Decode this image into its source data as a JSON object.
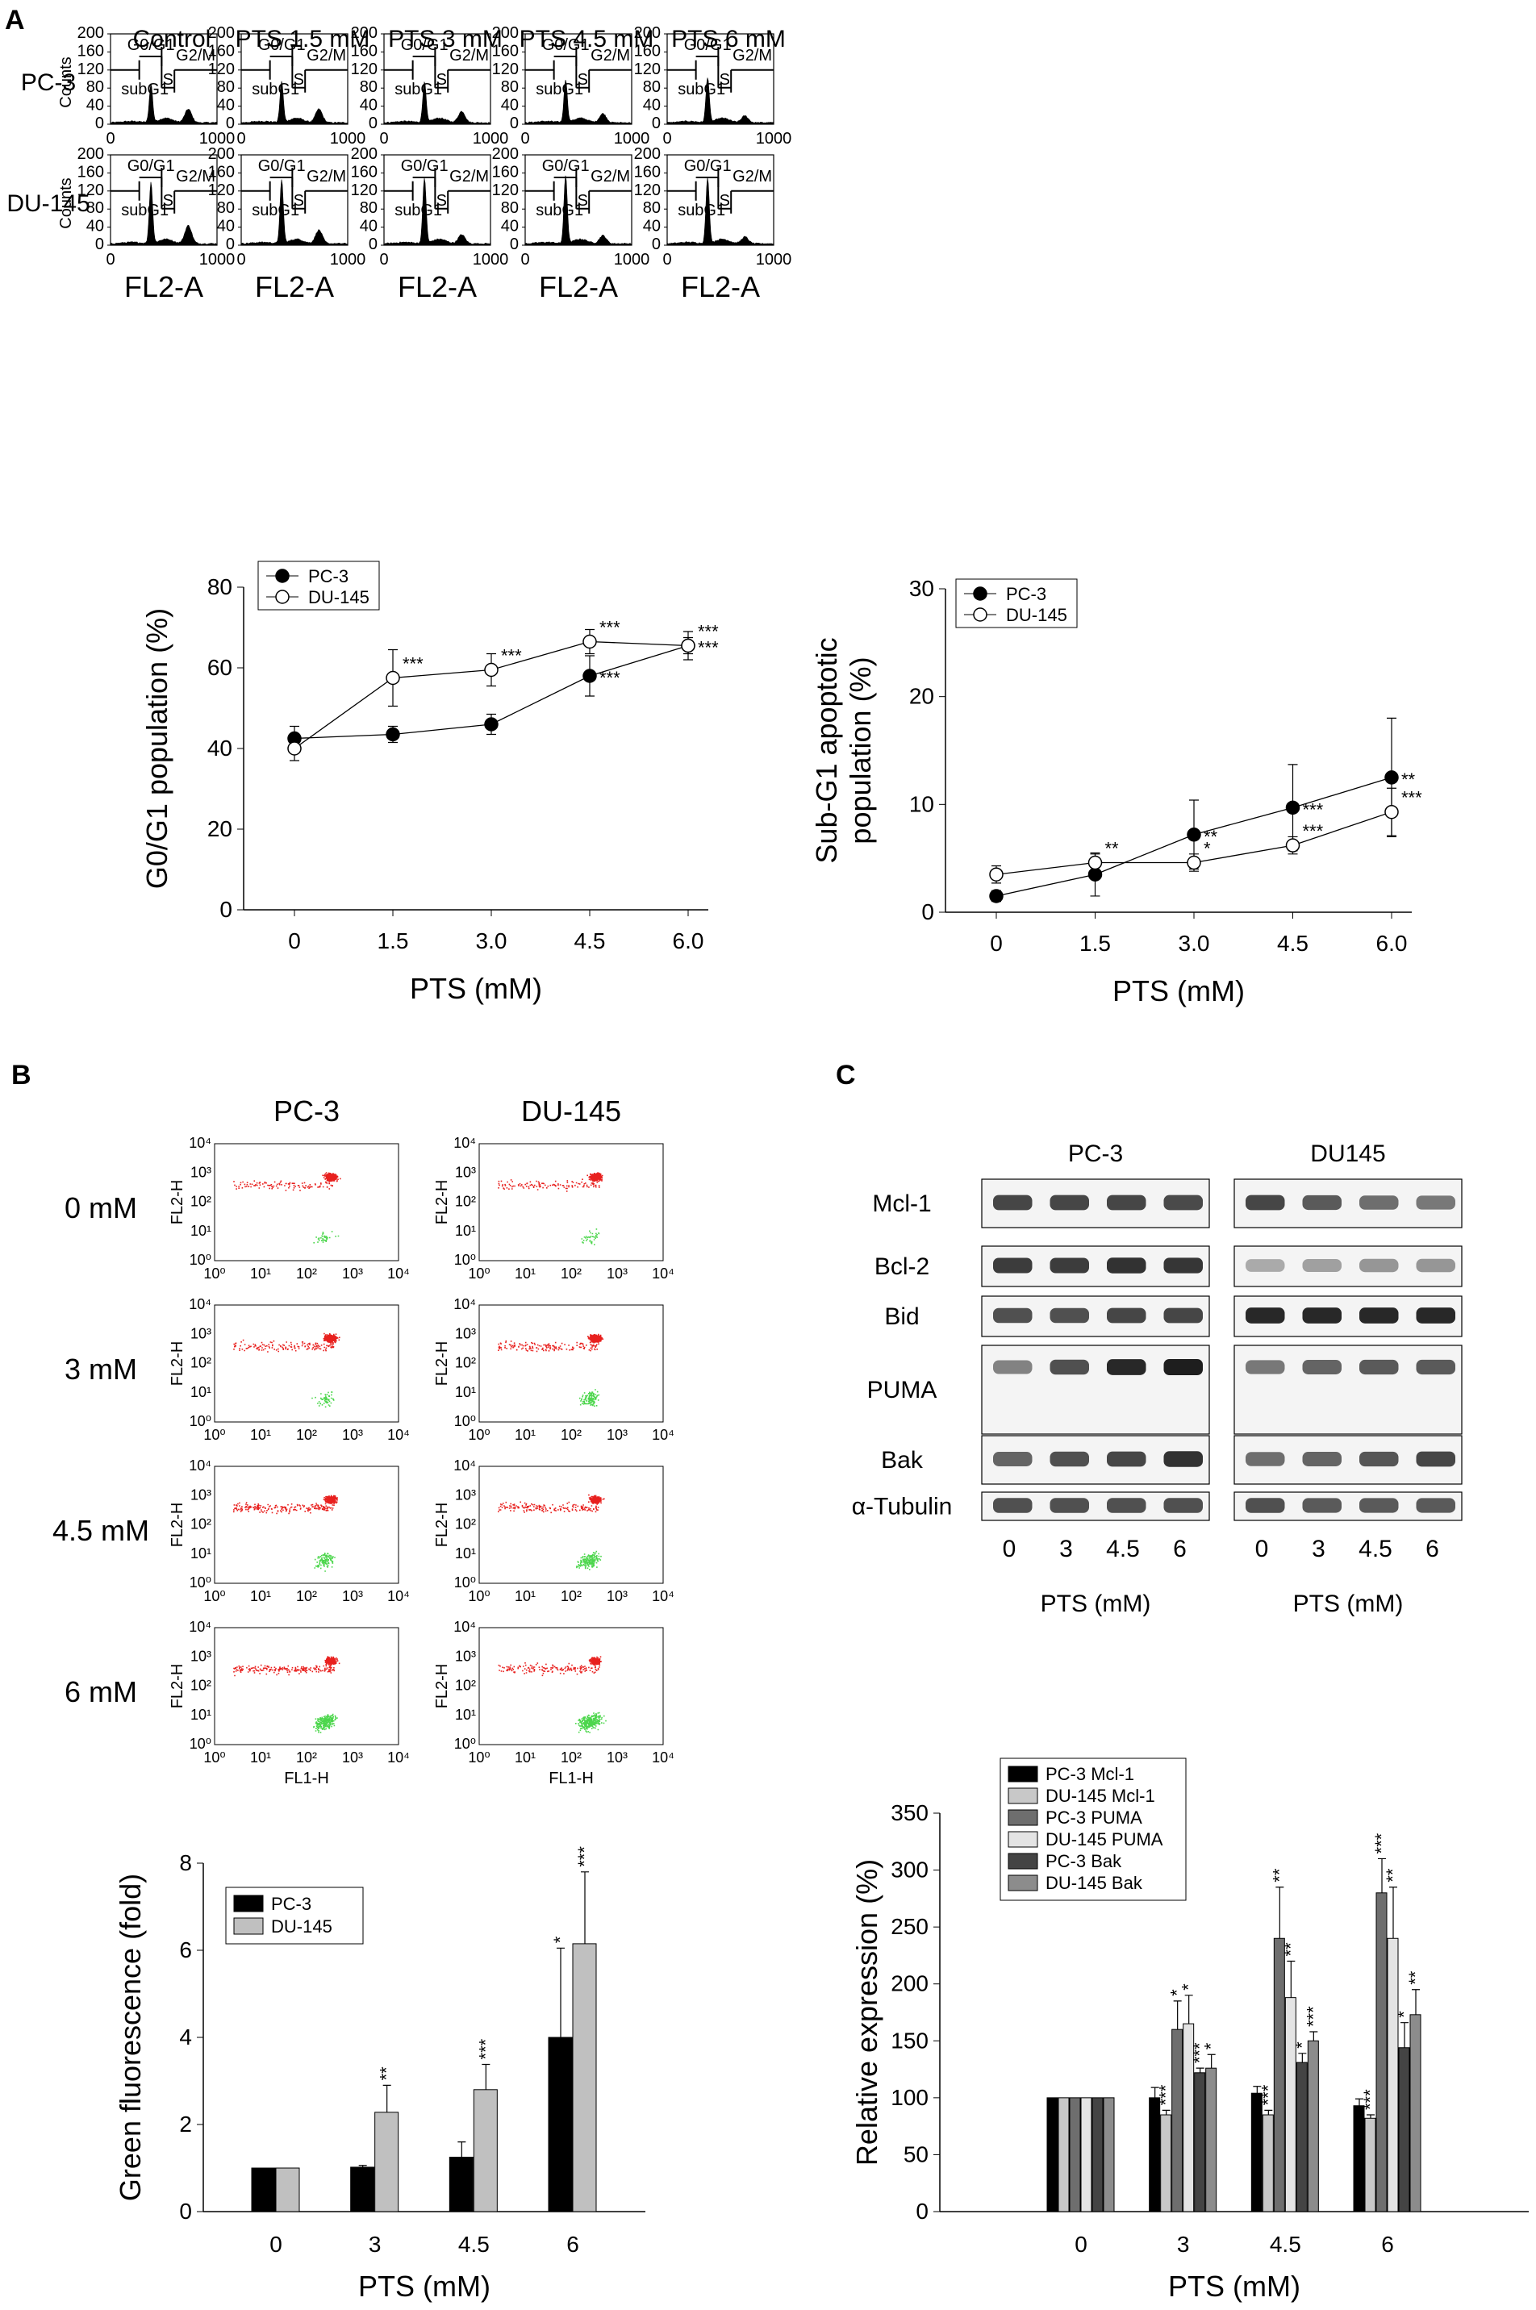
{
  "panel_labels": [
    "A",
    "B",
    "C"
  ],
  "chart_data": [
    {
      "id": "A_histograms",
      "type": "histogram-grid",
      "columns": [
        "Control",
        "PTS 1.5 mM",
        "PTS 3 mM",
        "PTS 4.5 mM",
        "PTS 6 mM"
      ],
      "rows": [
        "PC-3",
        "DU-145"
      ],
      "ylabel": "Counts",
      "xlabel": "FL2-A",
      "xlim": [
        0,
        1000
      ],
      "ylim": [
        0,
        200
      ],
      "yticks": [
        "0",
        "40",
        "80",
        "120",
        "160",
        "200"
      ],
      "xticks": [
        "0",
        "1000"
      ],
      "gates": [
        "subG1",
        "G0/G1",
        "S",
        "G2/M"
      ],
      "peak_heights": {
        "PC-3": [
          85,
          90,
          90,
          95,
          100
        ],
        "DU-145": [
          135,
          140,
          145,
          150,
          145
        ]
      },
      "g2_heights": {
        "PC-3": [
          30,
          30,
          25,
          20,
          15
        ],
        "DU-145": [
          40,
          30,
          20,
          18,
          15
        ]
      }
    },
    {
      "id": "A_g0g1",
      "type": "line",
      "ylabel": "G0/G1 population (%)",
      "xlabel": "PTS (mM)",
      "x": [
        "0",
        "1.5",
        "3.0",
        "4.5",
        "6.0"
      ],
      "ylim": [
        0,
        80
      ],
      "yticks": [
        "0",
        "20",
        "40",
        "60",
        "80"
      ],
      "series": [
        {
          "name": "PC-3",
          "values": [
            42.5,
            43.5,
            46,
            58,
            65.5
          ],
          "err": [
            3,
            2,
            2.5,
            5,
            3.5
          ],
          "stars": [
            "",
            "",
            "",
            "***",
            "***"
          ],
          "marker": "filled"
        },
        {
          "name": "DU-145",
          "values": [
            40,
            57.5,
            59.5,
            66.5,
            65.5
          ],
          "err": [
            3,
            7,
            4,
            3,
            2
          ],
          "stars": [
            "",
            "***",
            "***",
            "***",
            "***"
          ],
          "marker": "open"
        }
      ]
    },
    {
      "id": "A_subg1",
      "type": "line",
      "ylabel": "Sub-G1 apoptotic population (%)",
      "ylabel_lines": [
        "Sub-G1 apoptotic",
        "population (%)"
      ],
      "xlabel": "PTS (mM)",
      "x": [
        "0",
        "1.5",
        "3.0",
        "4.5",
        "6.0"
      ],
      "ylim": [
        0,
        30
      ],
      "yticks": [
        "0",
        "10",
        "20",
        "30"
      ],
      "series": [
        {
          "name": "PC-3",
          "values": [
            1.5,
            3.5,
            7.2,
            9.7,
            12.5
          ],
          "err": [
            0.5,
            2,
            3.2,
            4,
            5.5
          ],
          "stars": [
            "",
            "",
            "**",
            "***",
            "**"
          ],
          "marker": "filled"
        },
        {
          "name": "DU-145",
          "values": [
            3.5,
            4.6,
            4.6,
            6.2,
            9.3
          ],
          "err": [
            0.8,
            0.8,
            0.8,
            0.8,
            2.2
          ],
          "stars": [
            "",
            "**",
            "*",
            "***",
            "***"
          ],
          "marker": "open"
        }
      ]
    },
    {
      "id": "B_scatter",
      "type": "scatter",
      "columns": [
        "PC-3",
        "DU-145"
      ],
      "rows": [
        "0 mM",
        "3 mM",
        "4.5 mM",
        "6 mM"
      ],
      "ylabel": "FL2-H",
      "xlabel": "FL1-H",
      "ticks": [
        "10⁰",
        "10¹",
        "10²",
        "10³",
        "10⁴"
      ],
      "green_fraction": [
        [
          0.04,
          0.05
        ],
        [
          0.08,
          0.15
        ],
        [
          0.16,
          0.25
        ],
        [
          0.33,
          0.42
        ]
      ],
      "colors": {
        "red": "#e8201e",
        "green": "#4cd64c"
      }
    },
    {
      "id": "B_green_fluorescence",
      "type": "bar",
      "ylabel": "Green fluorescence (fold)",
      "xlabel": "PTS (mM)",
      "categories": [
        "0",
        "3",
        "4.5",
        "6"
      ],
      "ylim": [
        0,
        8
      ],
      "yticks": [
        "0",
        "2",
        "4",
        "6",
        "8"
      ],
      "series": [
        {
          "name": "PC-3",
          "values": [
            1,
            1.02,
            1.25,
            4.0
          ],
          "err": [
            0,
            0.04,
            0.35,
            2.05
          ],
          "stars": [
            "",
            "",
            "",
            "*"
          ],
          "color": "#000000"
        },
        {
          "name": "DU-145",
          "values": [
            1,
            2.28,
            2.8,
            6.15
          ],
          "err": [
            0,
            0.62,
            0.58,
            1.65
          ],
          "stars": [
            "",
            "**",
            "***",
            "***"
          ],
          "color": "#c0c0c0"
        }
      ]
    },
    {
      "id": "C_blot",
      "type": "western-blot",
      "groups": [
        "PC-3",
        "DU145"
      ],
      "proteins": [
        "Mcl-1",
        "Bcl-2",
        "Bid",
        "PUMA",
        "Bak",
        "α-Tubulin"
      ],
      "lanes": [
        "0",
        "3",
        "4.5",
        "6"
      ],
      "xlabel": "PTS (mM)",
      "intensity": {
        "PC-3": [
          [
            0.8,
            0.8,
            0.8,
            0.78
          ],
          [
            0.85,
            0.85,
            0.9,
            0.88
          ],
          [
            0.75,
            0.75,
            0.8,
            0.8
          ],
          [
            0.5,
            0.75,
            0.95,
            1.0
          ],
          [
            0.65,
            0.75,
            0.8,
            0.9
          ],
          [
            0.75,
            0.75,
            0.75,
            0.75
          ]
        ],
        "DU145": [
          [
            0.8,
            0.7,
            0.6,
            0.55
          ],
          [
            0.3,
            0.35,
            0.4,
            0.4
          ],
          [
            0.95,
            0.95,
            0.95,
            0.95
          ],
          [
            0.55,
            0.65,
            0.7,
            0.7
          ],
          [
            0.6,
            0.65,
            0.72,
            0.8
          ],
          [
            0.75,
            0.7,
            0.7,
            0.7
          ]
        ]
      }
    },
    {
      "id": "C_relative_expression",
      "type": "bar",
      "ylabel": "Relative expression (%)",
      "xlabel": "PTS (mM)",
      "categories": [
        "0",
        "3",
        "4.5",
        "6"
      ],
      "ylim": [
        0,
        350
      ],
      "yticks": [
        "0",
        "50",
        "100",
        "150",
        "200",
        "250",
        "300",
        "350"
      ],
      "series": [
        {
          "name": "PC-3 Mcl-1",
          "values": [
            100,
            100,
            104,
            93
          ],
          "err": [
            0,
            9,
            6,
            6
          ],
          "stars": [
            "",
            "",
            "",
            ""
          ],
          "color": "#000000"
        },
        {
          "name": "DU-145 Mcl-1",
          "values": [
            100,
            85,
            85,
            82
          ],
          "err": [
            0,
            4,
            4,
            3
          ],
          "stars": [
            "",
            "***",
            "***",
            "***"
          ],
          "color": "#c8c8c8"
        },
        {
          "name": "PC-3 PUMA",
          "values": [
            100,
            160,
            240,
            280
          ],
          "err": [
            0,
            25,
            45,
            30
          ],
          "stars": [
            "",
            "*",
            "**",
            "***"
          ],
          "color": "#6e6e6e"
        },
        {
          "name": "DU-145 PUMA",
          "values": [
            100,
            165,
            188,
            240
          ],
          "err": [
            0,
            25,
            32,
            45
          ],
          "stars": [
            "",
            "*",
            "**",
            "**"
          ],
          "color": "#e4e4e4"
        },
        {
          "name": "PC-3 Bak",
          "values": [
            100,
            122,
            131,
            144
          ],
          "err": [
            0,
            4,
            8,
            22
          ],
          "stars": [
            "",
            "***",
            "*",
            "*"
          ],
          "color": "#444444"
        },
        {
          "name": "DU-145 Bak",
          "values": [
            100,
            126,
            150,
            173
          ],
          "err": [
            0,
            12,
            8,
            22
          ],
          "stars": [
            "",
            "*",
            "***",
            "**"
          ],
          "color": "#8c8c8c"
        }
      ]
    }
  ]
}
